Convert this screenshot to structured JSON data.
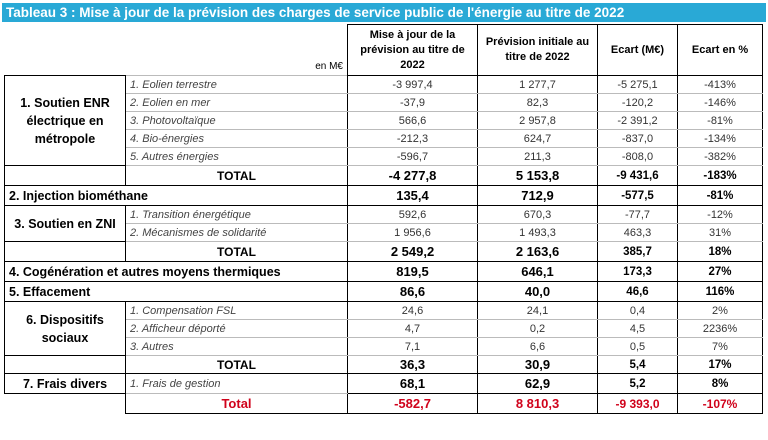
{
  "title": "Tableau 3 : Mise à jour de la prévision des charges de service public de l'énergie au titre de 2022",
  "header": {
    "unit": "en M€",
    "col_update": "Mise à jour de la prévision au titre de 2022",
    "col_initial": "Prévision initiale au titre de 2022",
    "col_ecart": "Ecart (M€)",
    "col_ecart_pct": "Ecart en %"
  },
  "total_label": "TOTAL",
  "sections": {
    "s1": {
      "label": "1. Soutien ENR électrique en métropole",
      "rows": [
        {
          "label": "1. Eolien terrestre",
          "update": "-3 997,4",
          "initial": "1 277,7",
          "ecart": "-5 275,1",
          "pct": "-413%"
        },
        {
          "label": "2. Eolien en mer",
          "update": "-37,9",
          "initial": "82,3",
          "ecart": "-120,2",
          "pct": "-146%"
        },
        {
          "label": "3. Photovoltaïque",
          "update": "566,6",
          "initial": "2 957,8",
          "ecart": "-2 391,2",
          "pct": "-81%"
        },
        {
          "label": "4. Bio-énergies",
          "update": "-212,3",
          "initial": "624,7",
          "ecart": "-837,0",
          "pct": "-134%"
        },
        {
          "label": "5. Autres énergies",
          "update": "-596,7",
          "initial": "211,3",
          "ecart": "-808,0",
          "pct": "-382%"
        }
      ],
      "total": {
        "update": "-4 277,8",
        "initial": "5 153,8",
        "ecart": "-9 431,6",
        "pct": "-183%"
      }
    },
    "s2": {
      "label": "2. Injection biométhane",
      "update": "135,4",
      "initial": "712,9",
      "ecart": "-577,5",
      "pct": "-81%"
    },
    "s3": {
      "label": "3. Soutien en ZNI",
      "rows": [
        {
          "label": "1. Transition énergétique",
          "update": "592,6",
          "initial": "670,3",
          "ecart": "-77,7",
          "pct": "-12%"
        },
        {
          "label": "2. Mécanismes de solidarité",
          "update": "1 956,6",
          "initial": "1 493,3",
          "ecart": "463,3",
          "pct": "31%"
        }
      ],
      "total": {
        "update": "2 549,2",
        "initial": "2 163,6",
        "ecart": "385,7",
        "pct": "18%"
      }
    },
    "s4": {
      "label": "4. Cogénération et autres moyens thermiques",
      "update": "819,5",
      "initial": "646,1",
      "ecart": "173,3",
      "pct": "27%"
    },
    "s5": {
      "label": "5. Effacement",
      "update": "86,6",
      "initial": "40,0",
      "ecart": "46,6",
      "pct": "116%"
    },
    "s6": {
      "label": "6. Dispositifs sociaux",
      "rows": [
        {
          "label": "1. Compensation FSL",
          "update": "24,6",
          "initial": "24,1",
          "ecart": "0,4",
          "pct": "2%"
        },
        {
          "label": "2. Afficheur déporté",
          "update": "4,7",
          "initial": "0,2",
          "ecart": "4,5",
          "pct": "2236%"
        },
        {
          "label": "3. Autres",
          "update": "7,1",
          "initial": "6,6",
          "ecart": "0,5",
          "pct": "7%"
        }
      ],
      "total": {
        "update": "36,3",
        "initial": "30,9",
        "ecart": "5,4",
        "pct": "17%"
      }
    },
    "s7": {
      "label": "7. Frais divers",
      "sub": "1. Frais de gestion",
      "update": "68,1",
      "initial": "62,9",
      "ecart": "5,2",
      "pct": "8%"
    }
  },
  "grand_total": {
    "label": "Total",
    "update": "-582,7",
    "initial": "8 810,3",
    "ecart": "-9 393,0",
    "pct": "-107%"
  },
  "colors": {
    "title_bg": "#29a9d6",
    "grand_total_text": "#d0021b"
  }
}
